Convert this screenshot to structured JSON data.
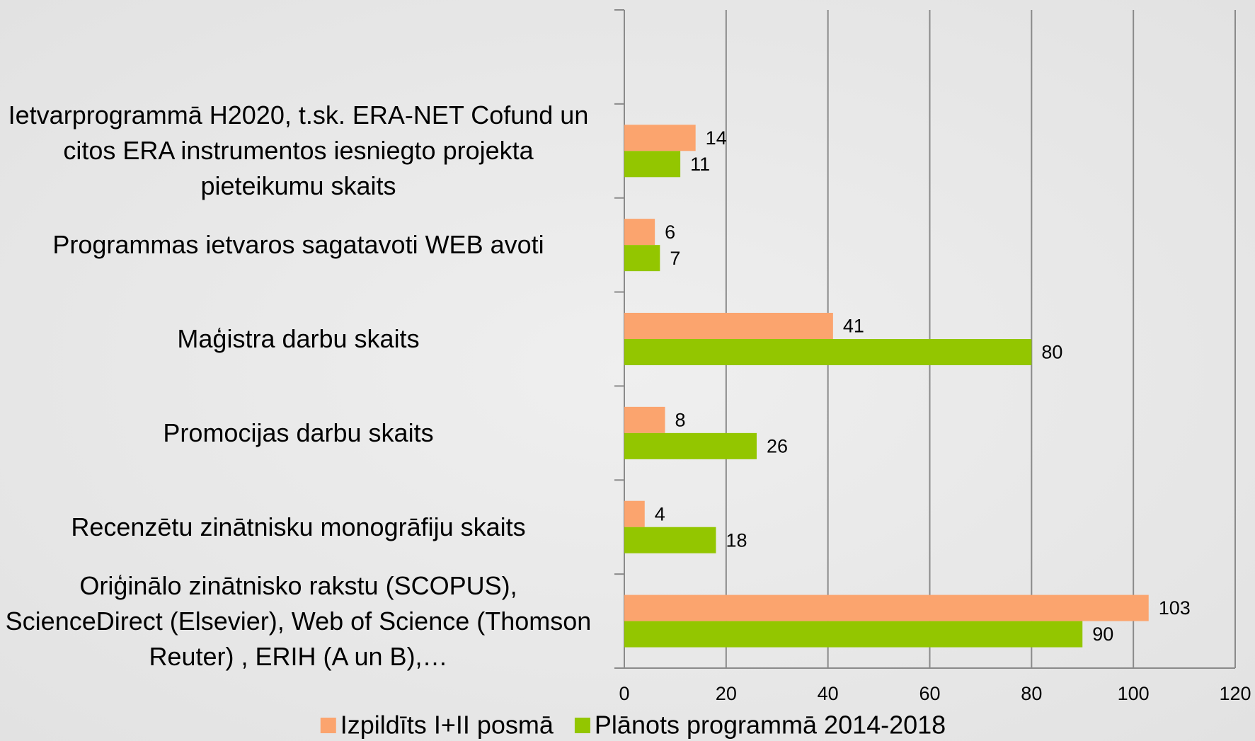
{
  "chart_data": {
    "type": "barh",
    "categories": [
      null,
      "Ietvarprogrammā H2020, t.sk. ERA-NET Cofund un citos ERA instrumentos iesniegto projekta pieteikumu skaits",
      "Programmas ietvaros sagatavoti WEB avoti",
      "Maģistra darbu skaits",
      "Promocijas darbu skaits",
      "Recenzētu zinātnisku monogrāfiju skaits",
      "Oriģinālo zinātnisko rakstu (SCOPUS), ScienceDirect (Elsevier), Web of Science (Thomson Reuter) , ERIH (A un B),…"
    ],
    "series": [
      {
        "name": "Izpildīts I+II posmā",
        "color": "#fba46e",
        "values": [
          null,
          14,
          6,
          41,
          8,
          4,
          103
        ]
      },
      {
        "name": "Plānots programmā 2014-2018",
        "color": "#93c600",
        "values": [
          null,
          11,
          7,
          80,
          26,
          18,
          90
        ]
      }
    ],
    "xlim": [
      0,
      120
    ],
    "xticks": [
      0,
      20,
      40,
      60,
      80,
      100,
      120
    ],
    "grid": true,
    "legend": "bottom"
  }
}
